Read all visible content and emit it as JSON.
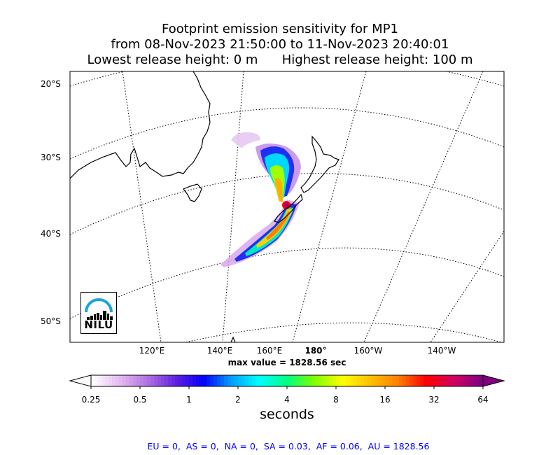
{
  "title": {
    "line1": "Footprint emission sensitivity for MP1",
    "line2": "from 08-Nov-2023 21:50:00 to 11-Nov-2023 20:40:01",
    "line3": "Lowest release height: 0 m      Highest release height: 100 m"
  },
  "map": {
    "lat_labels": [
      "20°S",
      "30°S",
      "40°S",
      "50°S"
    ],
    "lon_labels": [
      "120°E",
      "140°E",
      "160°E",
      "180°",
      "160°W",
      "140°W"
    ],
    "max_value_text": "max value = 1828.56 sec",
    "logo_text": "NILU"
  },
  "colorbar": {
    "ticks": [
      "0.25",
      "0.5",
      "1",
      "2",
      "4",
      "8",
      "16",
      "32",
      "64"
    ],
    "label": "seconds",
    "colors": [
      "#ffffff",
      "#e3b8f0",
      "#b070e0",
      "#6020e0",
      "#0000ff",
      "#00a0ff",
      "#00ffff",
      "#00ff80",
      "#80ff00",
      "#ffff00",
      "#ffc000",
      "#ff8000",
      "#ff0000",
      "#d00060",
      "#800080"
    ]
  },
  "footer": "EU = 0,  AS = 0,  NA = 0,  SA = 0.03,  AF = 0.06,  AU = 1828.56"
}
